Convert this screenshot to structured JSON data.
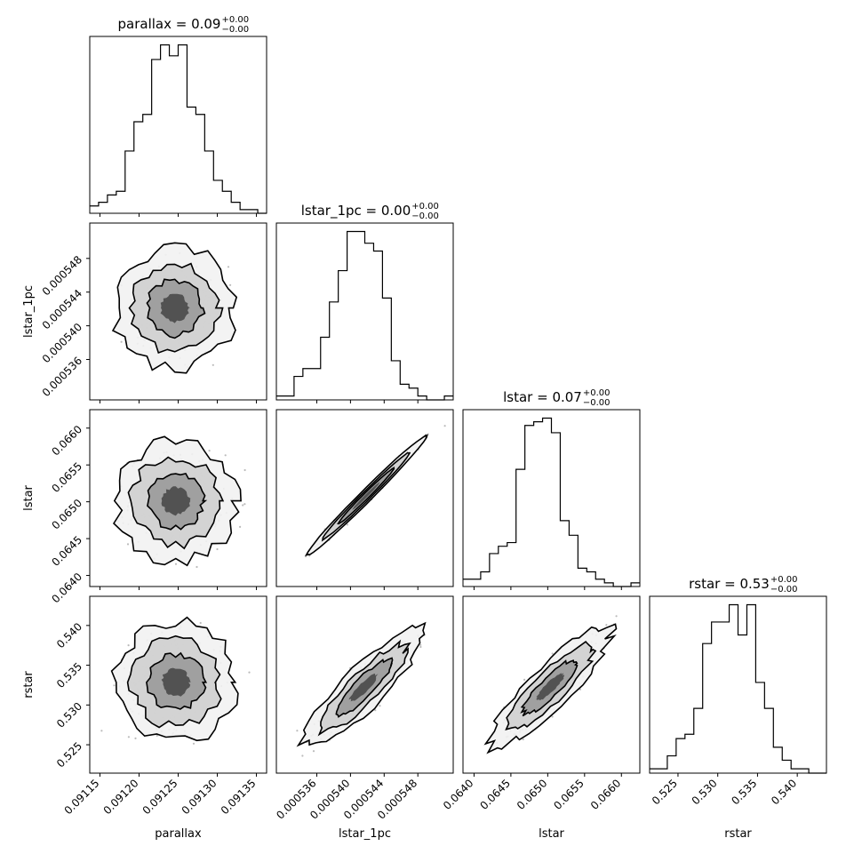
{
  "chart_data": {
    "type": "corner",
    "params": [
      "parallax",
      "lstar_1pc",
      "lstar",
      "rstar"
    ],
    "axis_labels": [
      "parallax",
      "lstar_1pc",
      "lstar",
      "rstar"
    ],
    "ranges": [
      [
        0.091137,
        0.091363
      ],
      [
        0.0005312,
        0.0005522
      ],
      [
        0.06385,
        0.06625
      ],
      [
        0.52143,
        0.54367
      ]
    ],
    "ticks": [
      {
        "values": [
          0.09115,
          0.0912,
          0.09125,
          0.0913,
          0.09135
        ],
        "labels": [
          "0.09115",
          "0.09120",
          "0.09125",
          "0.09130",
          "0.09135"
        ]
      },
      {
        "values": [
          0.000536,
          0.00054,
          0.000544,
          0.000548
        ],
        "labels": [
          "0.000536",
          "0.000540",
          "0.000544",
          "0.000548"
        ]
      },
      {
        "values": [
          0.064,
          0.0645,
          0.065,
          0.0655,
          0.066
        ],
        "labels": [
          "0.0640",
          "0.0645",
          "0.0650",
          "0.0655",
          "0.0660"
        ]
      },
      {
        "values": [
          0.525,
          0.53,
          0.535,
          0.54
        ],
        "labels": [
          "0.525",
          "0.530",
          "0.535",
          "0.540"
        ]
      }
    ],
    "titles": [
      {
        "main": "parallax = 0.09",
        "sup": "+0.00",
        "sub": "−0.00"
      },
      {
        "main": "lstar_1pc = 0.00",
        "sup": "+0.00",
        "sub": "−0.00"
      },
      {
        "main": "lstar = 0.07",
        "sup": "+0.00",
        "sub": "−0.00"
      },
      {
        "main": "rstar = 0.53",
        "sup": "+0.00",
        "sub": "−0.00"
      }
    ],
    "histograms": [
      {
        "param": "parallax",
        "bins": 20,
        "counts": [
          2,
          3,
          5,
          6,
          17,
          25,
          27,
          42,
          46,
          43,
          46,
          29,
          27,
          17,
          9,
          6,
          3,
          1,
          1,
          0
        ]
      },
      {
        "param": "lstar_1pc",
        "bins": 20,
        "counts": [
          1,
          1,
          6,
          8,
          8,
          16,
          25,
          33,
          43,
          43,
          40,
          38,
          26,
          10,
          4,
          3,
          1,
          0,
          0,
          1
        ]
      },
      {
        "param": "lstar",
        "bins": 20,
        "counts": [
          2,
          2,
          4,
          9,
          11,
          12,
          32,
          44,
          45,
          46,
          42,
          18,
          14,
          5,
          4,
          2,
          1,
          0,
          0,
          1
        ]
      },
      {
        "param": "rstar",
        "bins": 20,
        "counts": [
          1,
          1,
          4,
          8,
          9,
          15,
          30,
          35,
          35,
          39,
          32,
          39,
          21,
          15,
          6,
          3,
          1,
          1,
          0,
          0
        ]
      }
    ],
    "correlations": {
      "1,0": 0.0,
      "2,0": 0.0,
      "2,1": 0.99,
      "3,0": 0.0,
      "3,1": 0.88,
      "3,2": 0.88
    },
    "grid": false,
    "legend": "none"
  }
}
